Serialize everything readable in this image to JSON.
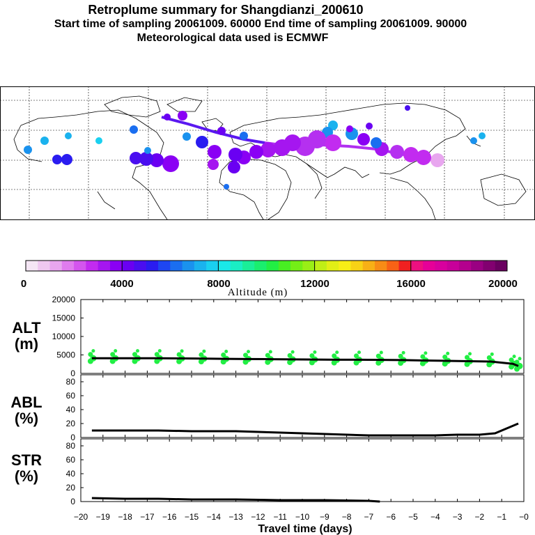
{
  "header": {
    "title": "Retroplume summary for Shangdianzi_200610",
    "sampling": "Start time of sampling 20061009. 60000     End time of sampling 20061009. 90000",
    "met": "Meteorological data used is ECMWF"
  },
  "colorbar": {
    "label": "Altitude (m)",
    "ticks": [
      "0",
      "4000",
      "8000",
      "12000",
      "16000",
      "20000"
    ],
    "colors": [
      "#f5e6f5",
      "#efc8f0",
      "#e8a6ef",
      "#e07cee",
      "#d455ee",
      "#c22bf0",
      "#a516f0",
      "#8a00f4",
      "#6a00f2",
      "#4a0ef0",
      "#2a1cf0",
      "#1e46f2",
      "#1a6ef0",
      "#1a92ee",
      "#1ab2ee",
      "#1ad0f0",
      "#1ae8e8",
      "#1aeec4",
      "#1aee98",
      "#1aee6e",
      "#22ee44",
      "#48ee22",
      "#74ee16",
      "#9aee16",
      "#c0ee16",
      "#e2ee16",
      "#f8ee16",
      "#f8d216",
      "#f8b016",
      "#f88c16",
      "#f86216",
      "#f02020",
      "#ee1080",
      "#e60098",
      "#d8009e",
      "#c8009a",
      "#b4008e",
      "#9a0082",
      "#820070",
      "#6a0060"
    ]
  },
  "chart_data": [
    {
      "type": "scatter",
      "panel": "ALT",
      "ylabel": "ALT\n(m)",
      "yticks": [
        "20000",
        "15000",
        "10000",
        "5000",
        "0"
      ],
      "ylim": [
        0,
        20000
      ],
      "x": [
        -19.5,
        -18.5,
        -17.5,
        -16.5,
        -15.5,
        -14.5,
        -13.5,
        -12.5,
        -11.5,
        -10.5,
        -9.5,
        -8.5,
        -7.5,
        -6.5,
        -5.5,
        -4.5,
        -3.5,
        -2.5,
        -1.5,
        -0.5,
        -0.25
      ],
      "median_line": [
        4100,
        4100,
        4100,
        4100,
        4050,
        4000,
        3950,
        3900,
        3850,
        3800,
        3750,
        3700,
        3700,
        3650,
        3600,
        3500,
        3400,
        3300,
        3200,
        2600,
        2000
      ],
      "point_color": "#22ee44"
    },
    {
      "type": "line",
      "panel": "ABL",
      "ylabel": "ABL\n(%)",
      "yticks": [
        "80",
        "60",
        "40",
        "20",
        "0"
      ],
      "ylim": [
        0,
        90
      ],
      "x": [
        -19.5,
        -18,
        -16.5,
        -15,
        -14,
        -13,
        -12,
        -11,
        -10,
        -9,
        -8,
        -7,
        -6,
        -5,
        -4,
        -3,
        -2,
        -1.3,
        -0.25
      ],
      "values": [
        10,
        10,
        10,
        9,
        9,
        9,
        8,
        7,
        6,
        5,
        4,
        3,
        3,
        3,
        3,
        4,
        4,
        6,
        20
      ]
    },
    {
      "type": "line",
      "panel": "STR",
      "ylabel": "STR\n(%)",
      "yticks": [
        "80",
        "60",
        "40",
        "20",
        "0"
      ],
      "ylim": [
        0,
        90
      ],
      "x": [
        -19.5,
        -18,
        -16.5,
        -15,
        -13,
        -11,
        -9,
        -7,
        -6.5
      ],
      "values": [
        5,
        4,
        4,
        3,
        3,
        2,
        2,
        1,
        0
      ]
    }
  ],
  "xaxis": {
    "label": "Travel time (days)",
    "ticks": [
      "−20",
      "−19",
      "−18",
      "−17",
      "−16",
      "−15",
      "−14",
      "−13",
      "−12",
      "−11",
      "−10",
      "−9",
      "−8",
      "−7",
      "−6",
      "−5",
      "−4",
      "−3",
      "−2",
      "−1",
      "−0"
    ],
    "range": [
      -20,
      0
    ]
  }
}
